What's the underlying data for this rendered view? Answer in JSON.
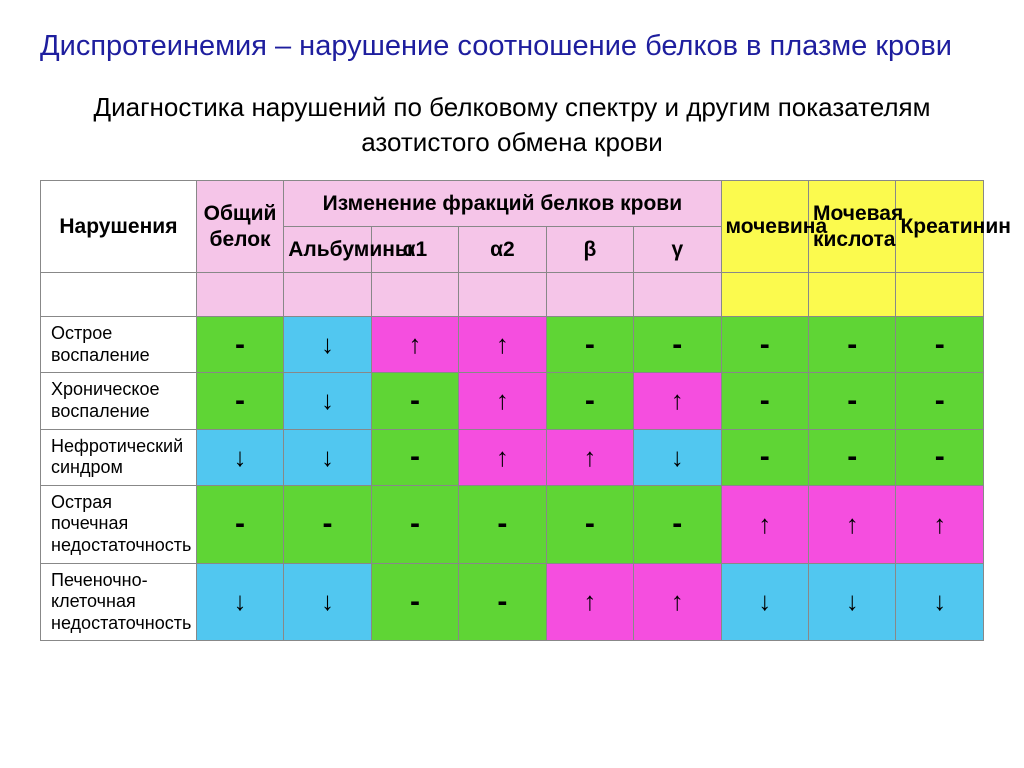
{
  "title_emph": "Диспротеинемия",
  "title_rest": " – нарушение соотношение белков в плазме крови",
  "subtitle": "Диагностика нарушений по белковому спектру и другим показателям азотистого обмена крови",
  "colors": {
    "pink_header": "#f5c5e8",
    "yellow_header": "#fbfa4e",
    "green": "#5fd535",
    "blue": "#51c7f0",
    "magenta": "#f54edf",
    "white": "#ffffff"
  },
  "headers": {
    "narushenia": "Нарушения",
    "obshiy_belok": "Общий белок",
    "izmenenie": "Изменение фракций белков крови",
    "mochevina": "мочевина",
    "moch_kislota": "Мочевая кислота",
    "kreatinin": "Креатинин",
    "albuminy": "Альбумины",
    "a1": "α1",
    "a2": "α2",
    "beta": "β",
    "gamma": "γ"
  },
  "rows": [
    {
      "label": "Острое воспаление",
      "cells": [
        {
          "v": "-",
          "c": "green",
          "t": "dash"
        },
        {
          "v": "↓",
          "c": "blue",
          "t": "arrow"
        },
        {
          "v": "↑",
          "c": "magenta",
          "t": "arrow"
        },
        {
          "v": "↑",
          "c": "magenta",
          "t": "arrow"
        },
        {
          "v": "-",
          "c": "green",
          "t": "dash"
        },
        {
          "v": "-",
          "c": "green",
          "t": "dash"
        },
        {
          "v": "-",
          "c": "green",
          "t": "dash"
        },
        {
          "v": "-",
          "c": "green",
          "t": "dash"
        },
        {
          "v": "-",
          "c": "green",
          "t": "dash"
        }
      ]
    },
    {
      "label": "Хроническое воспаление",
      "cells": [
        {
          "v": "-",
          "c": "green",
          "t": "dash"
        },
        {
          "v": "↓",
          "c": "blue",
          "t": "arrow"
        },
        {
          "v": "-",
          "c": "green",
          "t": "dash"
        },
        {
          "v": "↑",
          "c": "magenta",
          "t": "arrow"
        },
        {
          "v": "-",
          "c": "green",
          "t": "dash"
        },
        {
          "v": "↑",
          "c": "magenta",
          "t": "arrow"
        },
        {
          "v": "-",
          "c": "green",
          "t": "dash"
        },
        {
          "v": "-",
          "c": "green",
          "t": "dash"
        },
        {
          "v": "-",
          "c": "green",
          "t": "dash"
        }
      ]
    },
    {
      "label": "Нефротический синдром",
      "cells": [
        {
          "v": "↓",
          "c": "blue",
          "t": "arrow"
        },
        {
          "v": "↓",
          "c": "blue",
          "t": "arrow"
        },
        {
          "v": "-",
          "c": "green",
          "t": "dash"
        },
        {
          "v": "↑",
          "c": "magenta",
          "t": "arrow"
        },
        {
          "v": "↑",
          "c": "magenta",
          "t": "arrow"
        },
        {
          "v": "↓",
          "c": "blue",
          "t": "arrow"
        },
        {
          "v": "-",
          "c": "green",
          "t": "dash"
        },
        {
          "v": "-",
          "c": "green",
          "t": "dash"
        },
        {
          "v": "-",
          "c": "green",
          "t": "dash"
        }
      ]
    },
    {
      "label": "Острая почечная недостаточность",
      "cells": [
        {
          "v": "-",
          "c": "green",
          "t": "dash"
        },
        {
          "v": "-",
          "c": "green",
          "t": "dash"
        },
        {
          "v": "-",
          "c": "green",
          "t": "dash"
        },
        {
          "v": "-",
          "c": "green",
          "t": "dash"
        },
        {
          "v": "-",
          "c": "green",
          "t": "dash"
        },
        {
          "v": "-",
          "c": "green",
          "t": "dash"
        },
        {
          "v": "↑",
          "c": "magenta",
          "t": "arrow"
        },
        {
          "v": "↑",
          "c": "magenta",
          "t": "arrow"
        },
        {
          "v": "↑",
          "c": "magenta",
          "t": "arrow"
        }
      ]
    },
    {
      "label": "Печеночно-клеточная недостаточность",
      "cells": [
        {
          "v": "↓",
          "c": "blue",
          "t": "arrow"
        },
        {
          "v": "↓",
          "c": "blue",
          "t": "arrow"
        },
        {
          "v": "-",
          "c": "green",
          "t": "dash"
        },
        {
          "v": "-",
          "c": "green",
          "t": "dash"
        },
        {
          "v": "↑",
          "c": "magenta",
          "t": "arrow"
        },
        {
          "v": "↑",
          "c": "magenta",
          "t": "arrow"
        },
        {
          "v": "↓",
          "c": "blue",
          "t": "arrow"
        },
        {
          "v": "↓",
          "c": "blue",
          "t": "arrow"
        },
        {
          "v": "↓",
          "c": "blue",
          "t": "arrow"
        }
      ]
    }
  ]
}
